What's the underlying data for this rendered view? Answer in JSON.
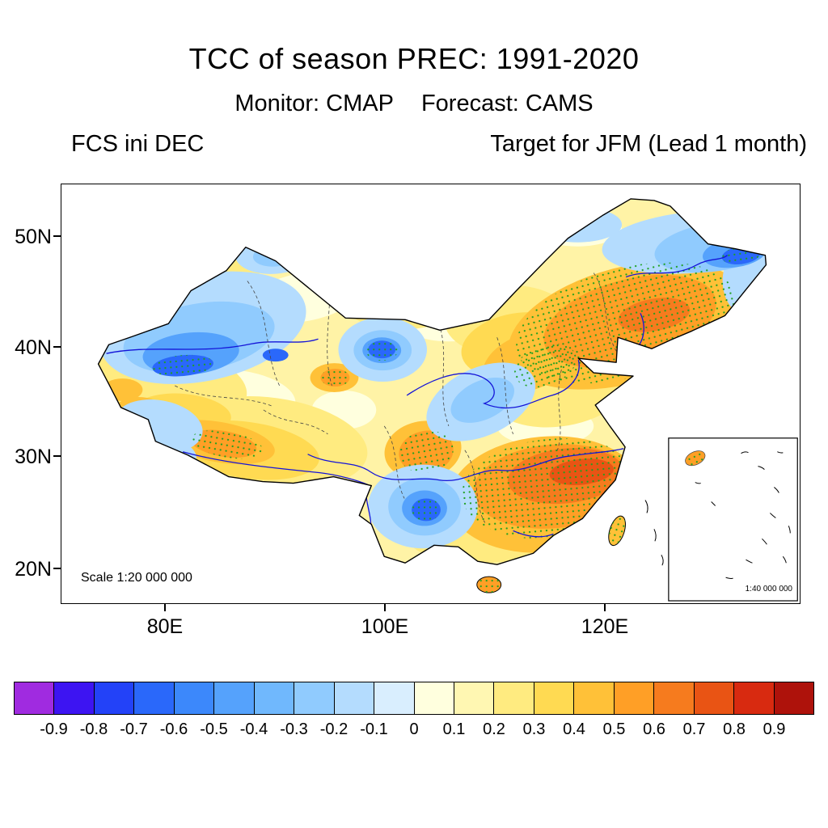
{
  "figure": {
    "title": "TCC of season PREC: 1991-2020",
    "monitor": "Monitor: CMAP",
    "forecast": "Forecast: CAMS",
    "init_label": "FCS ini DEC",
    "target_label": "Target for JFM (Lead 1 month)"
  },
  "map": {
    "scale_label": "Scale 1:20 000 000",
    "inset_scale_label": "1:40 000 000",
    "y_ticks": [
      "50N",
      "40N",
      "30N",
      "20N"
    ],
    "x_ticks": [
      "80E",
      "100E",
      "120E"
    ]
  },
  "colorbar": {
    "labels": [
      "-0.9",
      "-0.8",
      "-0.7",
      "-0.6",
      "-0.5",
      "-0.4",
      "-0.3",
      "-0.2",
      "-0.1",
      "0",
      "0.1",
      "0.2",
      "0.3",
      "0.4",
      "0.5",
      "0.6",
      "0.7",
      "0.8",
      "0.9"
    ],
    "colors": [
      "#A02BE0",
      "#3D14F2",
      "#2342F8",
      "#2A68FA",
      "#3C88FB",
      "#55A2FC",
      "#70B8FD",
      "#90CBFE",
      "#B4DCFE",
      "#D9EEFE",
      "#FFFFDE",
      "#FFF7B2",
      "#FFEB80",
      "#FFDA52",
      "#FFC138",
      "#FF9F26",
      "#F67B1E",
      "#E95414",
      "#D82A10",
      "#AE120B"
    ]
  },
  "chart_data": {
    "type": "heatmap",
    "title": "TCC of season PREC: 1991-2020",
    "subtitle_monitor": "Monitor: CMAP",
    "subtitle_forecast": "Forecast: CAMS",
    "initialization": "FCS ini DEC",
    "target": "Target for JFM (Lead 1 month)",
    "region": "China (filled-contour map of temporal correlation coefficient, TCC)",
    "x_axis": {
      "ticks": [
        "80E",
        "100E",
        "120E"
      ],
      "approx_range": [
        "72E",
        "138E"
      ]
    },
    "y_axis": {
      "ticks": [
        "50N",
        "40N",
        "30N",
        "20N"
      ],
      "approx_range": [
        "18N",
        "54N"
      ]
    },
    "levels": [
      -0.9,
      -0.8,
      -0.7,
      -0.6,
      -0.5,
      -0.4,
      -0.3,
      -0.2,
      -0.1,
      0,
      0.1,
      0.2,
      0.3,
      0.4,
      0.5,
      0.6,
      0.7,
      0.8,
      0.9
    ],
    "palette": [
      "#A02BE0",
      "#3D14F2",
      "#2342F8",
      "#2A68FA",
      "#3C88FB",
      "#55A2FC",
      "#70B8FD",
      "#90CBFE",
      "#B4DCFE",
      "#D9EEFE",
      "#FFFFDE",
      "#FFF7B2",
      "#FFEB80",
      "#FFDA52",
      "#FFC138",
      "#FF9F26",
      "#F67B1E",
      "#E95414",
      "#D82A10",
      "#AE120B"
    ],
    "stippling_meaning": "green dots overlay regions of strongest correlation (significance marking)",
    "notable_features": [
      "Large positive TCC (0.3 to 0.7, stippled) over southeastern China and the middle/lower Yangtze valley",
      "Positive TCC (0.2 to 0.6, stippled) across Inner Mongolia and interior Northeast China",
      "Positive stippled patches over eastern Sichuan/central China, southern Tibet band, and Hainan",
      "Negative TCC (-0.2 to -0.6, locally stippled) over northern Xinjiang and central Gansu/Qinghai",
      "Negative TCC pocket over the Sichuan-Yunnan border and at the far northeastern tip",
      "Light-blue negative band over Shaanxi/Shanxi between the two positive centers"
    ],
    "scale_main": "Scale 1:20 000 000",
    "scale_inset": "1:40 000 000"
  }
}
